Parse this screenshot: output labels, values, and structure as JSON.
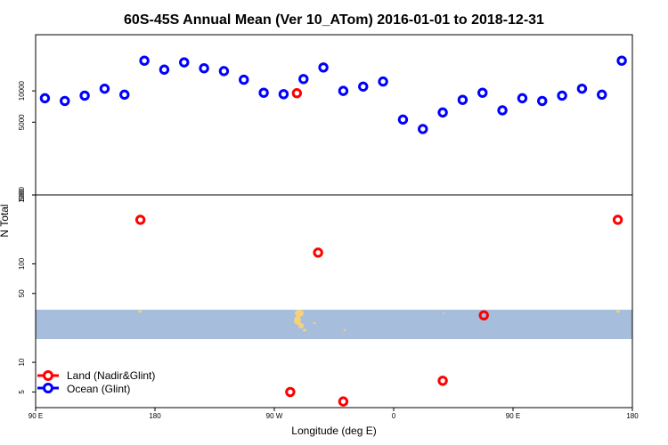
{
  "chart_data": {
    "type": "scatter",
    "title": "60S-45S Annual Mean (Ver 10_ATom)   2016-01-01 to 2018-12-31",
    "xlabel": "Longitude (deg E)",
    "ylabel": "N Total",
    "x_ticks": [
      {
        "value": 90,
        "label": "90 E"
      },
      {
        "value": 180,
        "label": "180"
      },
      {
        "value": 270,
        "label": "90 W"
      },
      {
        "value": 360,
        "label": "0"
      },
      {
        "value": 450,
        "label": "90 E"
      },
      {
        "value": 540,
        "label": "180"
      }
    ],
    "xlim": [
      90,
      540
    ],
    "y_scale": "log",
    "ocean_panel": {
      "ylim_log10": [
        3.0,
        4.54
      ],
      "y_ticks": [
        {
          "value": 1000,
          "label": "1000"
        },
        {
          "value": 5000,
          "label": "5000"
        },
        {
          "value": 10000,
          "label": "10000"
        }
      ]
    },
    "land_panel": {
      "ylim_log10": [
        0.54,
        2.7
      ],
      "y_ticks": [
        {
          "value": 5,
          "label": "5"
        },
        {
          "value": 10,
          "label": "10"
        },
        {
          "value": 50,
          "label": "50"
        },
        {
          "value": 100,
          "label": "100"
        },
        {
          "value": 500,
          "label": "500"
        }
      ]
    },
    "legend": {
      "position": "bottom-left",
      "entries": [
        {
          "label": "Land (Nadir&Glint)",
          "color": "#ff0000"
        },
        {
          "label": "Ocean (Glint)",
          "color": "#0000ff"
        }
      ]
    },
    "series": [
      {
        "name": "Ocean (Glint)",
        "panel": "ocean",
        "color": "#0000ff",
        "points": [
          {
            "x": 97,
            "y": 8500
          },
          {
            "x": 112,
            "y": 8000
          },
          {
            "x": 127,
            "y": 9000
          },
          {
            "x": 142,
            "y": 10500
          },
          {
            "x": 157,
            "y": 9200
          },
          {
            "x": 172,
            "y": 19500
          },
          {
            "x": 187,
            "y": 16000
          },
          {
            "x": 202,
            "y": 18800
          },
          {
            "x": 217,
            "y": 16500
          },
          {
            "x": 232,
            "y": 15500
          },
          {
            "x": 247,
            "y": 12800
          },
          {
            "x": 262,
            "y": 9600
          },
          {
            "x": 277,
            "y": 9300
          },
          {
            "x": 292,
            "y": 13000
          },
          {
            "x": 307,
            "y": 16800
          },
          {
            "x": 322,
            "y": 10000
          },
          {
            "x": 337,
            "y": 11000
          },
          {
            "x": 352,
            "y": 12300
          },
          {
            "x": 367,
            "y": 5300
          },
          {
            "x": 382,
            "y": 4300
          },
          {
            "x": 397,
            "y": 6200
          },
          {
            "x": 412,
            "y": 8200
          },
          {
            "x": 427,
            "y": 9600
          },
          {
            "x": 442,
            "y": 6500
          },
          {
            "x": 457,
            "y": 8500
          },
          {
            "x": 472,
            "y": 8000
          },
          {
            "x": 487,
            "y": 9000
          },
          {
            "x": 502,
            "y": 10500
          },
          {
            "x": 517,
            "y": 9200
          },
          {
            "x": 532,
            "y": 19500
          }
        ]
      },
      {
        "name": "Land (Nadir&Glint)",
        "panel": "land",
        "color": "#ff0000",
        "points": [
          {
            "x": 169,
            "y": 280
          },
          {
            "x": 282,
            "y": 5
          },
          {
            "x": 303,
            "y": 130
          },
          {
            "x": 322,
            "y": 4
          },
          {
            "x": 397,
            "y": 6.5
          },
          {
            "x": 428,
            "y": 30
          },
          {
            "x": 529,
            "y": 280
          }
        ]
      },
      {
        "name": "",
        "panel": "ocean-overlap",
        "color": "#ff0000",
        "points": [
          {
            "x": 287,
            "y": 9500
          }
        ]
      }
    ]
  }
}
